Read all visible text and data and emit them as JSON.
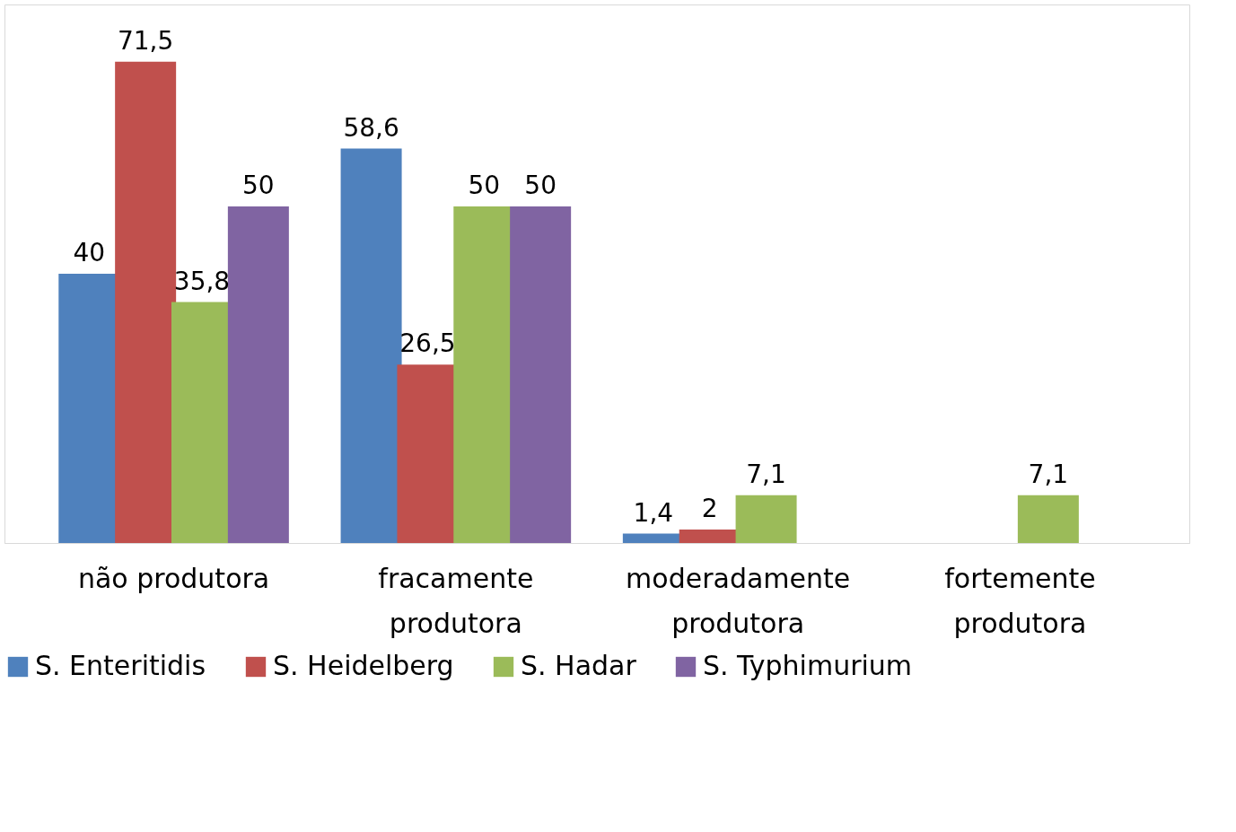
{
  "chart_data": {
    "type": "bar",
    "categories": [
      "não produtora",
      "fracamente produtora",
      "moderadamente produtora",
      "fortemente produtora"
    ],
    "series": [
      {
        "name": "S. Enteritidis",
        "color": "#4f81bd",
        "values": [
          40,
          58.6,
          1.4,
          null
        ],
        "value_labels": [
          "40",
          "58,6",
          "1,4",
          null
        ]
      },
      {
        "name": "S. Heidelberg",
        "color": "#c0504d",
        "values": [
          71.5,
          26.5,
          2,
          null
        ],
        "value_labels": [
          "71,5",
          "26,5",
          "2",
          null
        ]
      },
      {
        "name": "S. Hadar",
        "color": "#9bbb59",
        "values": [
          35.8,
          50,
          7.1,
          7.1
        ],
        "value_labels": [
          "35,8",
          "50",
          "7,1",
          "7,1"
        ]
      },
      {
        "name": "S. Typhimurium",
        "color": "#8064a2",
        "values": [
          50,
          50,
          null,
          null
        ],
        "value_labels": [
          "50",
          "50",
          null,
          null
        ]
      }
    ],
    "legend": "bottom",
    "grid": false
  }
}
